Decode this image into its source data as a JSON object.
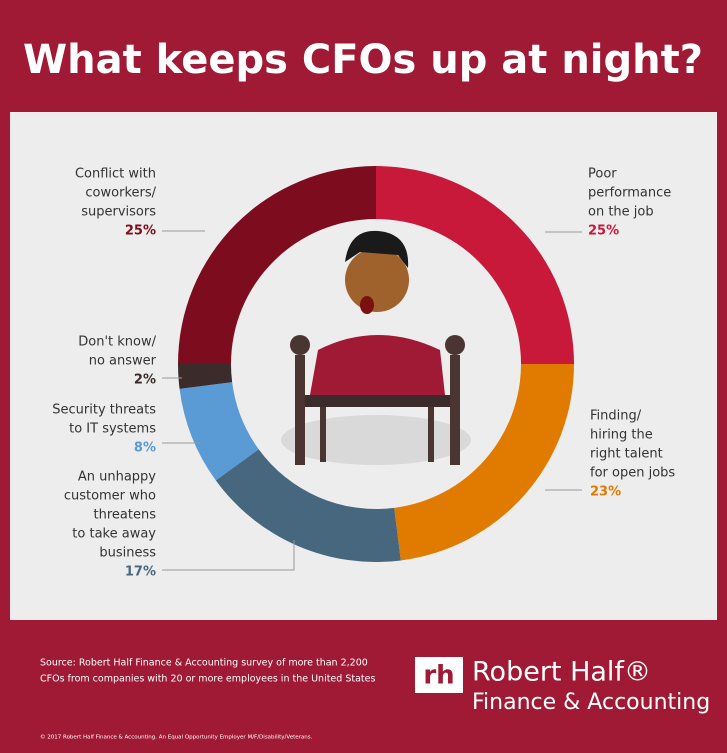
{
  "chart_data": {
    "type": "donut",
    "title": "What keeps CFOs up at night?",
    "categories": [
      [
        "Poor",
        "performance",
        "on the job"
      ],
      [
        "Finding/",
        "hiring the",
        "right talent",
        "for open jobs"
      ],
      [
        "An unhappy",
        "customer who",
        "threatens",
        "to take away",
        "business"
      ],
      [
        "Security threats",
        "to IT systems"
      ],
      [
        "Don't know/",
        "no answer"
      ],
      [
        "Conflict with",
        "coworkers/",
        "supervisors"
      ]
    ],
    "values": [
      25,
      23,
      17,
      8,
      2,
      25
    ],
    "value_labels": [
      "25%",
      "23%",
      "17%",
      "8%",
      "2%",
      "25%"
    ],
    "colors": [
      "#c8193a",
      "#e07b00",
      "#46677e",
      "#5b9bd5",
      "#3b2b2b",
      "#7d0c1e"
    ]
  },
  "footer": {
    "source": [
      "Source: Robert Half Finance & Accounting survey of more than 2,200",
      "CFOs from companies with 20 or more employees in the United States"
    ],
    "logo_mark": "rh",
    "logo_name": "Robert Half®",
    "logo_sub": "Finance & Accounting",
    "copyright": "© 2017 Robert Half Finance & Accounting. An Equal Opportunity Employer M/F/Disability/Veterans."
  }
}
